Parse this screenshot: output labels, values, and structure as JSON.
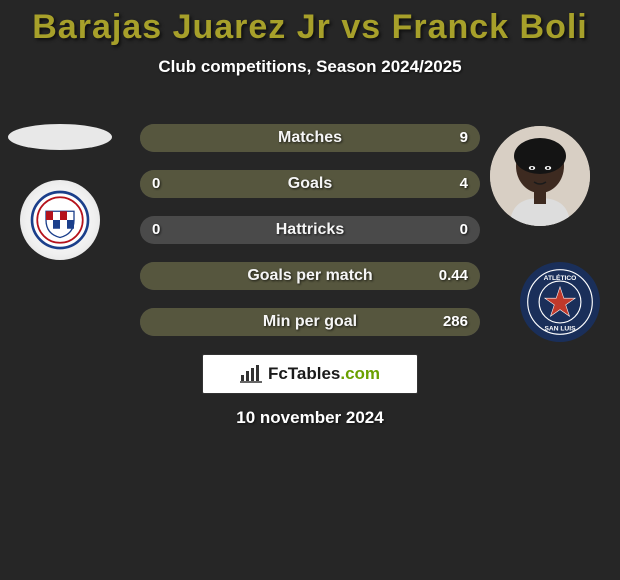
{
  "title_color": "#a7a02a",
  "title": "Barajas Juarez Jr vs Franck Boli",
  "subtitle": "Club competitions, Season 2024/2025",
  "background_color": "#262626",
  "bar_colors": {
    "left": "#a7a028",
    "right": "#56563e",
    "empty": "#4a4a4a"
  },
  "stats": [
    {
      "label": "Matches",
      "left_val": "",
      "right_val": "9",
      "left_pct": 0,
      "right_pct": 100
    },
    {
      "label": "Goals",
      "left_val": "0",
      "right_val": "4",
      "left_pct": 0,
      "right_pct": 100
    },
    {
      "label": "Hattricks",
      "left_val": "0",
      "right_val": "0",
      "left_pct": 0,
      "right_pct": 0
    },
    {
      "label": "Goals per match",
      "left_val": "",
      "right_val": "0.44",
      "left_pct": 0,
      "right_pct": 100
    },
    {
      "label": "Min per goal",
      "left_val": "",
      "right_val": "286",
      "left_pct": 0,
      "right_pct": 100
    }
  ],
  "badge": {
    "site": "FcTables",
    "suffix": ".com"
  },
  "date": "10 november 2024",
  "clubs": {
    "left": {
      "name": "CD Guadalajara",
      "bg": "#f0f0f0",
      "primary": "#b5121b",
      "secondary": "#1b3f8b"
    },
    "right": {
      "name": "Atlético San Luis",
      "bg": "#1a2f5a",
      "ring": "#ffffff",
      "accent": "#c0392b"
    }
  },
  "players": {
    "left": {
      "name": "Barajas Juarez Jr",
      "has_photo": false
    },
    "right": {
      "name": "Franck Boli",
      "has_photo": true,
      "skin": "#3d2a20",
      "shirt": "#dddddd"
    }
  }
}
